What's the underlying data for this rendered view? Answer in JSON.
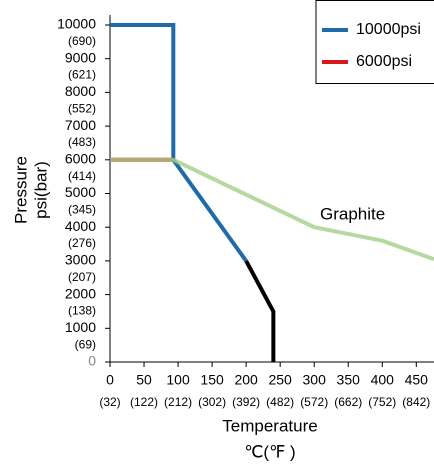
{
  "chart_data": {
    "type": "line",
    "xlabel": "Temperature",
    "xlabel2": "℃(℉ )",
    "ylabel": [
      "Pressure",
      "psi(bar)"
    ],
    "xlim": [
      0,
      476
    ],
    "ylim": [
      0,
      10000
    ],
    "xticks": [
      0,
      50,
      100,
      150,
      200,
      250,
      300,
      350,
      400,
      450
    ],
    "xtick_sublabels": [
      "(32)",
      "(122)",
      "(212)",
      "(302)",
      "(392)",
      "(482)",
      "(572)",
      "(662)",
      "(752)",
      "(842)"
    ],
    "yticks": [
      0,
      1000,
      2000,
      3000,
      4000,
      5000,
      6000,
      7000,
      8000,
      9000,
      10000
    ],
    "ytick_sublabels": [
      null,
      "(69)",
      "(138)",
      "(207)",
      "(276)",
      "(345)",
      "(414)",
      "(483)",
      "(552)",
      "(621)",
      "(690)"
    ],
    "legend": "upper right",
    "series": [
      {
        "name": "10000psi",
        "color": "#1f6aab",
        "x": [
          0,
          93,
          93,
          200
        ],
        "values": [
          10000,
          10000,
          6000,
          3000
        ]
      },
      {
        "name": "6000psi",
        "color": "#d7191c",
        "x": [
          0,
          93
        ],
        "values": [
          6000,
          6000
        ]
      }
    ],
    "lines": [
      {
        "color": "#000000",
        "x": [
          200,
          240,
          240
        ],
        "values": [
          3000,
          1500,
          0
        ]
      },
      {
        "label": "Graphite",
        "color": "#a3d08a",
        "x": [
          0,
          93,
          300,
          400,
          476
        ],
        "values": [
          6000,
          6000,
          4000,
          3600,
          3050
        ]
      }
    ]
  }
}
